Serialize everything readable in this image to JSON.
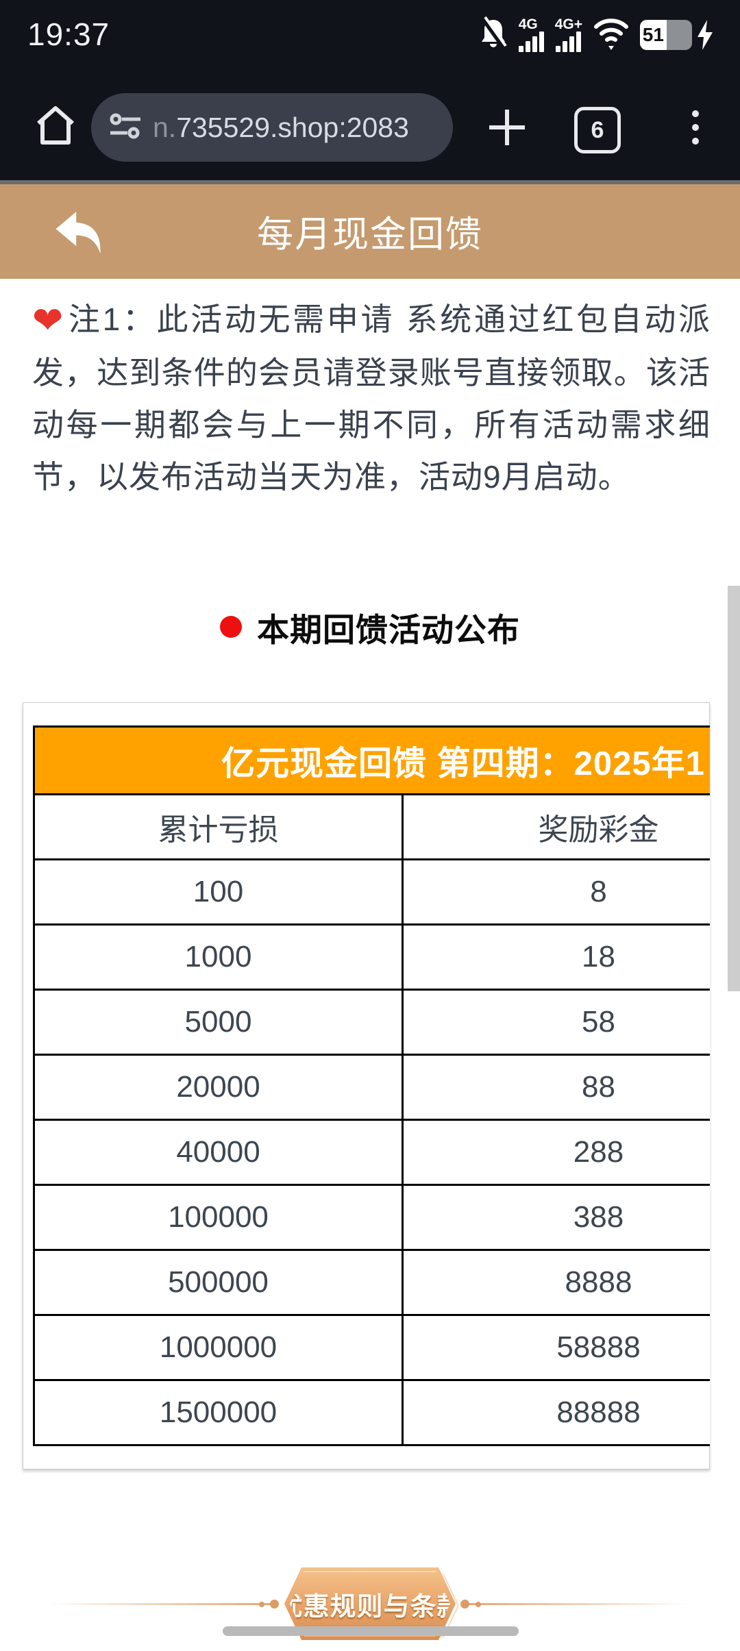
{
  "status_bar": {
    "time": "19:37",
    "network_badge_1": "4G",
    "network_badge_2": "4G+",
    "battery_percent": "51"
  },
  "browser": {
    "url_dim_prefix": "n.",
    "url_host": "735529.shop:2083",
    "tab_count": "6"
  },
  "app_header": {
    "title": "每月现金回馈"
  },
  "notice": {
    "heart_glyph": "❤",
    "text": "注1：此活动无需申请 系统通过红包自动派发，达到条件的会员请登录账号直接领取。该活动每一期都会与上一期不同，所有活动需求细节，以发布活动当天为准，活动9月启动。"
  },
  "section_heading": {
    "label": "本期回馈活动公布"
  },
  "rebate_table": {
    "title_visible": "亿元现金回馈 第四期：2025年1",
    "columns": [
      "累计亏损",
      "奖励彩金"
    ],
    "rows": [
      [
        "100",
        "8"
      ],
      [
        "1000",
        "18"
      ],
      [
        "5000",
        "58"
      ],
      [
        "20000",
        "88"
      ],
      [
        "40000",
        "288"
      ],
      [
        "100000",
        "388"
      ],
      [
        "500000",
        "8888"
      ],
      [
        "1000000",
        "58888"
      ],
      [
        "1500000",
        "88888"
      ]
    ]
  },
  "footer": {
    "banner_label": "优惠规则与条款",
    "bracket_left": "《",
    "bracket_right": "》"
  },
  "colors": {
    "header_tan": "#c59a6e",
    "table_orange": "#ffa200",
    "accent_red": "#ee1010",
    "dark_chrome": "#10131a"
  }
}
